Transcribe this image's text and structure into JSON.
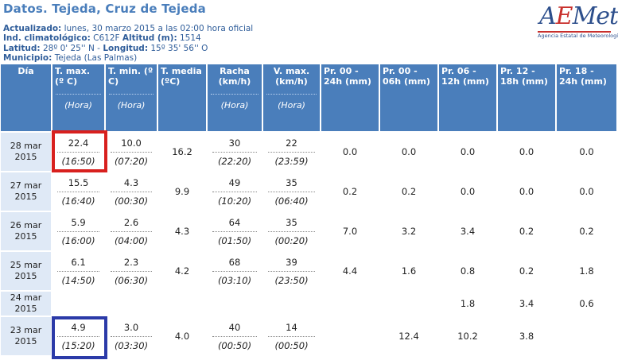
{
  "header": {
    "title": "Datos. Tejeda, Cruz de Tejeda",
    "updated_label": "Actualizado:",
    "updated_value": "lunes, 30 marzo 2015 a las 02:00 hora oficial",
    "ind_label": "Ind. climatológico:",
    "ind_value": "C612F",
    "alt_label": "Altitud (m):",
    "alt_value": "1514",
    "lat_label": "Latitud:",
    "lat_value": "28º 0' 25'' N",
    "lon_label": "Longitud:",
    "lon_value": "15º 35' 56'' O",
    "mun_label": "Municipio:",
    "mun_value": "Tejeda (Las Palmas)"
  },
  "logo": {
    "mark_a": "A",
    "mark_e": "E",
    "mark_rest": "Met",
    "agency": "Agencia Estatal de Meteorología",
    "brand_blue": "#2d4f8c",
    "brand_red": "#c8302c"
  },
  "columns": {
    "dia": "Día",
    "tmax": "T. max. (º C)",
    "tmin": "T. min. (º C)",
    "tmed": "T. media (ºC)",
    "racha": "Racha (km/h)",
    "vmax": "V. max. (km/h)",
    "pr_00_24": "Pr. 00 - 24h (mm)",
    "pr_00_06": "Pr. 00 - 06h (mm)",
    "pr_06_12": "Pr. 06 - 12h (mm)",
    "pr_12_18": "Pr. 12 - 18h (mm)",
    "pr_18_24": "Pr. 18 - 24h (mm)",
    "hora": "(Hora)"
  },
  "rows": [
    {
      "date": "28 mar 2015",
      "tmax": "22.4",
      "tmax_h": "(16:50)",
      "tmin": "10.0",
      "tmin_h": "(07:20)",
      "tmed": "16.2",
      "racha": "30",
      "racha_h": "(22:20)",
      "vmax": "22",
      "vmax_h": "(23:59)",
      "p0024": "0.0",
      "p0006": "0.0",
      "p0612": "0.0",
      "p1218": "0.0",
      "p1824": "0.0"
    },
    {
      "date": "27 mar 2015",
      "tmax": "15.5",
      "tmax_h": "(16:40)",
      "tmin": "4.3",
      "tmin_h": "(00:30)",
      "tmed": "9.9",
      "racha": "49",
      "racha_h": "(10:20)",
      "vmax": "35",
      "vmax_h": "(06:40)",
      "p0024": "0.2",
      "p0006": "0.2",
      "p0612": "0.0",
      "p1218": "0.0",
      "p1824": "0.0"
    },
    {
      "date": "26 mar 2015",
      "tmax": "5.9",
      "tmax_h": "(16:00)",
      "tmin": "2.6",
      "tmin_h": "(04:00)",
      "tmed": "4.3",
      "racha": "64",
      "racha_h": "(01:50)",
      "vmax": "35",
      "vmax_h": "(00:20)",
      "p0024": "7.0",
      "p0006": "3.2",
      "p0612": "3.4",
      "p1218": "0.2",
      "p1824": "0.2"
    },
    {
      "date": "25 mar 2015",
      "tmax": "6.1",
      "tmax_h": "(14:50)",
      "tmin": "2.3",
      "tmin_h": "(06:30)",
      "tmed": "4.2",
      "racha": "68",
      "racha_h": "(03:10)",
      "vmax": "39",
      "vmax_h": "(23:50)",
      "p0024": "4.4",
      "p0006": "1.6",
      "p0612": "0.8",
      "p1218": "0.2",
      "p1824": "1.8"
    },
    {
      "date": "24 mar 2015",
      "tmax": "",
      "tmax_h": "",
      "tmin": "",
      "tmin_h": "",
      "tmed": "",
      "racha": "",
      "racha_h": "",
      "vmax": "",
      "vmax_h": "",
      "p0024": "",
      "p0006": "",
      "p0612": "1.8",
      "p1218": "3.4",
      "p1824": "0.6"
    },
    {
      "date": "23 mar 2015",
      "tmax": "4.9",
      "tmax_h": "(15:20)",
      "tmin": "3.0",
      "tmin_h": "(03:30)",
      "tmed": "4.0",
      "racha": "40",
      "racha_h": "(00:50)",
      "vmax": "14",
      "vmax_h": "(00:50)",
      "p0024": "",
      "p0006": "12.4",
      "p0612": "10.2",
      "p1218": "3.8",
      "p1824": ""
    }
  ],
  "colors": {
    "header_bg": "#4a7ebb",
    "date_bg": "#dfe9f6",
    "highlight_red": "#d8201e",
    "highlight_blue": "#2b3aa8"
  }
}
